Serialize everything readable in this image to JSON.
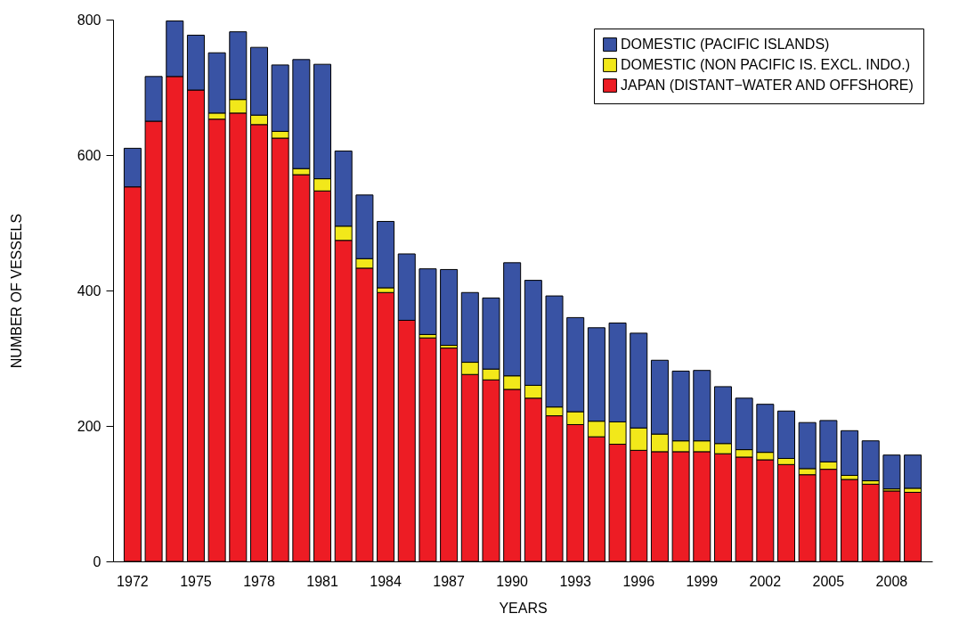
{
  "chart_data": {
    "type": "bar",
    "stacked": true,
    "xlabel": "YEARS",
    "ylabel": "NUMBER OF VESSELS",
    "categories": [
      "1972",
      null,
      null,
      "1975",
      null,
      null,
      "1978",
      null,
      null,
      "1981",
      null,
      null,
      "1984",
      null,
      null,
      "1987",
      null,
      null,
      "1990",
      null,
      null,
      "1993",
      null,
      null,
      "1996",
      null,
      null,
      "1999",
      null,
      null,
      "2002",
      null,
      null,
      "2005",
      null,
      null,
      "2008",
      null
    ],
    "series": [
      {
        "name": "JAPAN (DISTANT−WATER AND OFFSHORE)",
        "color": "#ed1c24",
        "values": [
          553,
          650,
          716,
          696,
          653,
          662,
          645,
          625,
          571,
          547,
          474,
          433,
          397,
          356,
          330,
          315,
          276,
          268,
          254,
          241,
          215,
          202,
          184,
          173,
          164,
          162,
          162,
          162,
          159,
          154,
          150,
          143,
          128,
          136,
          121,
          114,
          104,
          102
        ]
      },
      {
        "name": "DOMESTIC (NON PACIFIC IS. EXCL. INDO.)",
        "color": "#f2e81a",
        "values": [
          0,
          0,
          0,
          0,
          9,
          20,
          14,
          10,
          9,
          18,
          21,
          14,
          7,
          0,
          5,
          4,
          18,
          16,
          20,
          19,
          13,
          19,
          23,
          33,
          33,
          26,
          16,
          16,
          15,
          11,
          11,
          9,
          9,
          11,
          6,
          5,
          3,
          6
        ]
      },
      {
        "name": "DOMESTIC (PACIFIC ISLANDS)",
        "color": "#3953a4",
        "values": [
          57,
          66,
          82,
          81,
          89,
          100,
          100,
          98,
          161,
          169,
          111,
          94,
          98,
          98,
          97,
          112,
          103,
          105,
          167,
          155,
          164,
          139,
          138,
          146,
          140,
          109,
          103,
          104,
          84,
          76,
          71,
          70,
          68,
          61,
          66,
          59,
          50,
          49
        ]
      }
    ],
    "ylim": [
      0,
      800
    ],
    "yticks": [
      0,
      200,
      400,
      600,
      800
    ],
    "grid": false,
    "legend": "top right"
  }
}
